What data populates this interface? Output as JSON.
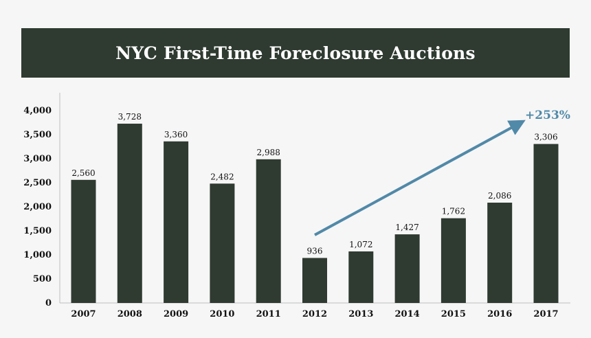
{
  "chart_data": {
    "type": "bar",
    "title": "NYC First-Time Foreclosure Auctions",
    "categories": [
      "2007",
      "2008",
      "2009",
      "2010",
      "2011",
      "2012",
      "2013",
      "2014",
      "2015",
      "2016",
      "2017"
    ],
    "values": [
      2560,
      3728,
      3360,
      2482,
      2988,
      936,
      1072,
      1427,
      1762,
      2086,
      3306
    ],
    "value_labels": [
      "2,560",
      "3,728",
      "3,360",
      "2,482",
      "2,988",
      "936",
      "1,072",
      "1,427",
      "1,762",
      "2,086",
      "3,306"
    ],
    "ylim": [
      0,
      4000
    ],
    "yticks": [
      0,
      500,
      1000,
      1500,
      2000,
      2500,
      3000,
      3500,
      4000
    ],
    "ytick_labels": [
      "0",
      "500",
      "1,000",
      "1,500",
      "2,000",
      "2,500",
      "3,000",
      "3,500",
      "4,000"
    ],
    "grid": false,
    "annotation": {
      "text": "+253%",
      "from_category": "2012",
      "to_category": "2017"
    },
    "colors": {
      "bar": "#2f3a31",
      "arrow": "#5189a8",
      "banner": "#2f3a31"
    }
  }
}
